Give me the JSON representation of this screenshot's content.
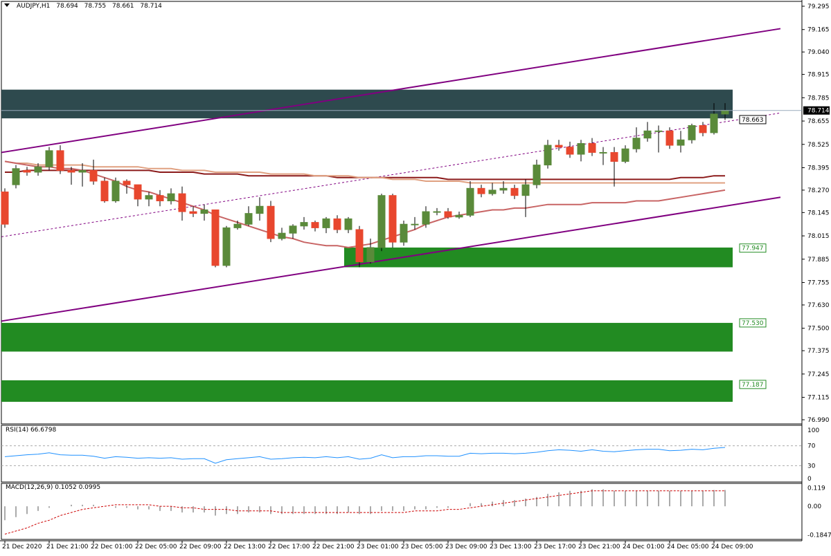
{
  "header": {
    "symbol": "AUDJPY,H1",
    "open": "78.694",
    "high": "78.755",
    "low": "78.661",
    "close": "78.714"
  },
  "rsi_label": "RSI(14) 66.6798",
  "macd_label": "MACD(12,26,9) 0.1052 0.0995",
  "colors": {
    "bull": "#5a8a3a",
    "bear": "#e8472e",
    "zone_green": "#228b22",
    "zone_dark": "#2e4a4e",
    "channel": "#800080",
    "ma_dark": "#8b1a1a",
    "ma_light": "#e0a080",
    "ma_mid": "#c86464",
    "rsi": "#1e90ff",
    "signal": "#cc0000"
  },
  "chart_data": [
    {
      "type": "candlestick",
      "name": "price",
      "yaxis_ticks": [
        "79.295",
        "79.165",
        "79.040",
        "78.915",
        "78.785",
        "78.655",
        "78.525",
        "78.395",
        "78.270",
        "78.145",
        "78.015",
        "77.885",
        "77.755",
        "77.630",
        "77.500",
        "77.375",
        "77.245",
        "77.115",
        "76.990"
      ],
      "ylim": [
        76.99,
        79.295
      ],
      "price_labels": [
        {
          "text": "78.714",
          "value": 78.714,
          "style": "current"
        },
        {
          "text": "78.663",
          "value": 78.663,
          "style": "box"
        },
        {
          "text": "77.947",
          "value": 77.947,
          "style": "green"
        },
        {
          "text": "77.530",
          "value": 77.53,
          "style": "green"
        },
        {
          "text": "77.187",
          "value": 77.187,
          "style": "green"
        }
      ],
      "zones": [
        {
          "kind": "resistance",
          "from": 78.67,
          "to": 78.83,
          "start_bar": 0
        },
        {
          "kind": "support",
          "from": 77.84,
          "to": 77.95,
          "start_bar": 31
        },
        {
          "kind": "support",
          "from": 77.37,
          "to": 77.53,
          "start_bar": 0
        },
        {
          "kind": "support",
          "from": 77.09,
          "to": 77.21,
          "start_bar": 0
        }
      ],
      "x_labels": [
        {
          "bar": 0,
          "text": "21 Dec 2020"
        },
        {
          "bar": 4,
          "text": "21 Dec 21:00"
        },
        {
          "bar": 8,
          "text": "22 Dec 01:00"
        },
        {
          "bar": 12,
          "text": "22 Dec 05:00"
        },
        {
          "bar": 16,
          "text": "22 Dec 09:00"
        },
        {
          "bar": 20,
          "text": "22 Dec 13:00"
        },
        {
          "bar": 24,
          "text": "22 Dec 17:00"
        },
        {
          "bar": 28,
          "text": "22 Dec 21:00"
        },
        {
          "bar": 32,
          "text": "23 Dec 01:00"
        },
        {
          "bar": 36,
          "text": "23 Dec 05:00"
        },
        {
          "bar": 40,
          "text": "23 Dec 09:00"
        },
        {
          "bar": 44,
          "text": "23 Dec 13:00"
        },
        {
          "bar": 48,
          "text": "23 Dec 17:00"
        },
        {
          "bar": 52,
          "text": "23 Dec 21:00"
        },
        {
          "bar": 56,
          "text": "24 Dec 01:00"
        },
        {
          "bar": 60,
          "text": "24 Dec 05:00"
        },
        {
          "bar": 64,
          "text": "24 Dec 09:00"
        }
      ],
      "candles": [
        [
          78.26,
          78.08,
          78.28,
          78.06
        ],
        [
          78.3,
          78.39,
          78.41,
          78.28
        ],
        [
          78.38,
          78.37,
          78.4,
          78.35
        ],
        [
          78.37,
          78.4,
          78.42,
          78.35
        ],
        [
          78.4,
          78.49,
          78.51,
          78.38
        ],
        [
          78.49,
          78.38,
          78.52,
          78.36
        ],
        [
          78.38,
          78.37,
          78.4,
          78.3
        ],
        [
          78.37,
          78.38,
          78.42,
          78.29
        ],
        [
          78.38,
          78.32,
          78.44,
          78.3
        ],
        [
          78.32,
          78.21,
          78.34,
          78.2
        ],
        [
          78.21,
          78.32,
          78.34,
          78.2
        ],
        [
          78.32,
          78.3,
          78.33,
          78.25
        ],
        [
          78.3,
          78.22,
          78.3,
          78.18
        ],
        [
          78.22,
          78.24,
          78.26,
          78.18
        ],
        [
          78.24,
          78.21,
          78.27,
          78.18
        ],
        [
          78.21,
          78.25,
          78.28,
          78.19
        ],
        [
          78.25,
          78.15,
          78.29,
          78.1
        ],
        [
          78.15,
          78.14,
          78.18,
          78.12
        ],
        [
          78.14,
          78.16,
          78.19,
          78.1
        ],
        [
          78.16,
          77.85,
          78.16,
          77.84
        ],
        [
          77.85,
          78.06,
          78.07,
          77.84
        ],
        [
          78.06,
          78.08,
          78.1,
          78.05
        ],
        [
          78.08,
          78.14,
          78.18,
          78.07
        ],
        [
          78.14,
          78.18,
          78.23,
          78.1
        ],
        [
          78.18,
          78.0,
          78.21,
          77.98
        ],
        [
          78.0,
          78.03,
          78.06,
          77.99
        ],
        [
          78.03,
          78.07,
          78.08,
          78.0
        ],
        [
          78.07,
          78.09,
          78.12,
          78.05
        ],
        [
          78.09,
          78.06,
          78.1,
          78.04
        ],
        [
          78.06,
          78.11,
          78.12,
          78.03
        ],
        [
          78.11,
          78.05,
          78.13,
          78.03
        ],
        [
          78.05,
          78.11,
          78.12,
          78.03
        ],
        [
          78.05,
          77.87,
          78.07,
          77.84
        ],
        [
          77.87,
          77.95,
          78.0,
          77.86
        ],
        [
          77.95,
          78.24,
          78.25,
          77.93
        ],
        [
          78.24,
          77.98,
          78.25,
          77.95
        ],
        [
          77.98,
          78.08,
          78.1,
          77.96
        ],
        [
          78.08,
          78.08,
          78.12,
          78.05
        ],
        [
          78.08,
          78.15,
          78.18,
          78.06
        ],
        [
          78.15,
          78.15,
          78.17,
          78.13
        ],
        [
          78.15,
          78.12,
          78.17,
          78.11
        ],
        [
          78.12,
          78.13,
          78.15,
          78.11
        ],
        [
          78.13,
          78.28,
          78.32,
          78.12
        ],
        [
          78.28,
          78.25,
          78.3,
          78.23
        ],
        [
          78.25,
          78.27,
          78.31,
          78.24
        ],
        [
          78.27,
          78.28,
          78.32,
          78.25
        ],
        [
          78.28,
          78.24,
          78.3,
          78.22
        ],
        [
          78.24,
          78.3,
          78.33,
          78.12
        ],
        [
          78.3,
          78.41,
          78.44,
          78.28
        ],
        [
          78.41,
          78.52,
          78.55,
          78.39
        ],
        [
          78.52,
          78.51,
          78.55,
          78.49
        ],
        [
          78.51,
          78.47,
          78.54,
          78.45
        ],
        [
          78.47,
          78.53,
          78.55,
          78.43
        ],
        [
          78.53,
          78.48,
          78.56,
          78.46
        ],
        [
          78.48,
          78.48,
          78.51,
          78.41
        ],
        [
          78.48,
          78.43,
          78.51,
          78.29
        ],
        [
          78.43,
          78.5,
          78.52,
          78.42
        ],
        [
          78.5,
          78.56,
          78.62,
          78.48
        ],
        [
          78.56,
          78.6,
          78.65,
          78.54
        ],
        [
          78.6,
          78.6,
          78.63,
          78.48
        ],
        [
          78.6,
          78.52,
          78.62,
          78.5
        ],
        [
          78.52,
          78.55,
          78.6,
          78.48
        ],
        [
          78.55,
          78.63,
          78.64,
          78.53
        ],
        [
          78.63,
          78.59,
          78.65,
          78.57
        ],
        [
          78.59,
          78.694,
          78.755,
          78.58
        ],
        [
          78.694,
          78.714,
          78.755,
          78.661
        ]
      ],
      "moving_averages": [
        {
          "color_key": "ma_dark",
          "values": [
            78.37,
            78.37,
            78.38,
            78.38,
            78.38,
            78.38,
            78.38,
            78.38,
            78.38,
            78.38,
            78.38,
            78.38,
            78.38,
            78.38,
            78.37,
            78.37,
            78.37,
            78.37,
            78.36,
            78.36,
            78.36,
            78.36,
            78.35,
            78.35,
            78.35,
            78.35,
            78.35,
            78.35,
            78.35,
            78.35,
            78.34,
            78.34,
            78.34,
            78.34,
            78.34,
            78.34,
            78.34,
            78.34,
            78.34,
            78.34,
            78.33,
            78.33,
            78.33,
            78.33,
            78.33,
            78.33,
            78.33,
            78.33,
            78.33,
            78.33,
            78.33,
            78.33,
            78.33,
            78.33,
            78.33,
            78.33,
            78.33,
            78.33,
            78.33,
            78.33,
            78.33,
            78.34,
            78.34,
            78.34,
            78.35,
            78.35
          ]
        },
        {
          "color_key": "ma_light",
          "values": [
            78.43,
            78.42,
            78.42,
            78.41,
            78.41,
            78.41,
            78.41,
            78.41,
            78.4,
            78.4,
            78.4,
            78.4,
            78.4,
            78.39,
            78.39,
            78.39,
            78.38,
            78.38,
            78.38,
            78.37,
            78.37,
            78.37,
            78.37,
            78.37,
            78.36,
            78.36,
            78.36,
            78.36,
            78.35,
            78.35,
            78.35,
            78.35,
            78.34,
            78.34,
            78.34,
            78.33,
            78.33,
            78.33,
            78.32,
            78.32,
            78.32,
            78.32,
            78.31,
            78.31,
            78.31,
            78.31,
            78.31,
            78.31,
            78.31,
            78.31,
            78.31,
            78.31,
            78.31,
            78.31,
            78.31,
            78.31,
            78.31,
            78.31,
            78.31,
            78.31,
            78.31,
            78.31,
            78.31,
            78.31,
            78.31,
            78.31
          ]
        },
        {
          "color_key": "ma_mid",
          "values": [
            78.43,
            78.42,
            78.41,
            78.4,
            78.4,
            78.39,
            78.39,
            78.38,
            78.36,
            78.34,
            78.32,
            78.29,
            78.27,
            78.26,
            78.24,
            78.22,
            78.2,
            78.18,
            78.16,
            78.13,
            78.11,
            78.09,
            78.07,
            78.05,
            78.03,
            78.01,
            78.0,
            77.98,
            77.97,
            77.96,
            77.96,
            77.95,
            77.96,
            77.97,
            77.99,
            78.01,
            78.03,
            78.05,
            78.08,
            78.1,
            78.12,
            78.13,
            78.14,
            78.15,
            78.16,
            78.16,
            78.17,
            78.17,
            78.18,
            78.19,
            78.19,
            78.19,
            78.19,
            78.2,
            78.2,
            78.2,
            78.2,
            78.21,
            78.21,
            78.21,
            78.22,
            78.23,
            78.24,
            78.25,
            78.26,
            78.27
          ]
        }
      ],
      "channel": {
        "upper": {
          "start_bar": -0.3,
          "start": 78.48,
          "end_bar": 70,
          "end": 79.17
        },
        "lower": {
          "start_bar": -0.3,
          "start": 77.54,
          "end_bar": 70,
          "end": 78.23
        },
        "mid": {
          "start_bar": -0.3,
          "start": 78.01,
          "end_bar": 70,
          "end": 78.7
        }
      }
    },
    {
      "type": "line",
      "name": "RSI(14)",
      "yaxis_ticks": [
        "70",
        "30"
      ],
      "ylim": [
        0,
        100
      ],
      "levels": [
        70,
        30
      ],
      "values": [
        48,
        50,
        52,
        53,
        56,
        52,
        51,
        51,
        49,
        45,
        48,
        47,
        45,
        46,
        45,
        46,
        43,
        44,
        44,
        35,
        42,
        44,
        46,
        48,
        43,
        44,
        46,
        47,
        46,
        48,
        46,
        48,
        43,
        45,
        52,
        46,
        48,
        48,
        50,
        50,
        49,
        49,
        55,
        54,
        55,
        55,
        54,
        55,
        57,
        60,
        62,
        61,
        59,
        62,
        59,
        58,
        60,
        62,
        63,
        63,
        60,
        61,
        63,
        62,
        65,
        66.68
      ]
    },
    {
      "type": "bar",
      "name": "MACD(12,26,9)",
      "yaxis_ticks": [
        "0.119",
        "0.00",
        "-0.1847"
      ],
      "ylim": [
        -0.205,
        0.13
      ],
      "histogram": [
        -0.09,
        -0.07,
        -0.05,
        -0.03,
        -0.01,
        0.0,
        0.01,
        0.01,
        0.01,
        0.0,
        -0.01,
        -0.01,
        -0.02,
        -0.02,
        -0.03,
        -0.03,
        -0.04,
        -0.04,
        -0.04,
        -0.06,
        -0.05,
        -0.05,
        -0.04,
        -0.04,
        -0.05,
        -0.05,
        -0.05,
        -0.05,
        -0.05,
        -0.05,
        -0.05,
        -0.04,
        -0.05,
        -0.05,
        -0.03,
        -0.03,
        -0.03,
        -0.02,
        -0.02,
        -0.01,
        -0.01,
        0.0,
        0.02,
        0.02,
        0.03,
        0.04,
        0.04,
        0.05,
        0.06,
        0.08,
        0.09,
        0.1,
        0.1,
        0.11,
        0.11,
        0.1,
        0.1,
        0.1,
        0.1,
        0.1,
        0.1,
        0.1,
        0.1,
        0.1,
        0.105,
        0.1052
      ],
      "signal": [
        -0.18,
        -0.16,
        -0.14,
        -0.11,
        -0.09,
        -0.06,
        -0.04,
        -0.02,
        -0.01,
        0.0,
        0.01,
        0.01,
        0.01,
        0.01,
        0.0,
        0.0,
        -0.01,
        -0.01,
        -0.02,
        -0.02,
        -0.02,
        -0.03,
        -0.03,
        -0.03,
        -0.03,
        -0.04,
        -0.04,
        -0.04,
        -0.04,
        -0.04,
        -0.04,
        -0.04,
        -0.04,
        -0.04,
        -0.04,
        -0.04,
        -0.04,
        -0.03,
        -0.03,
        -0.03,
        -0.02,
        -0.02,
        -0.01,
        0.0,
        0.01,
        0.02,
        0.03,
        0.04,
        0.05,
        0.06,
        0.07,
        0.08,
        0.09,
        0.1,
        0.1,
        0.1,
        0.1,
        0.1,
        0.1,
        0.1,
        0.1,
        0.1,
        0.1,
        0.1,
        0.1,
        0.0995
      ]
    }
  ]
}
